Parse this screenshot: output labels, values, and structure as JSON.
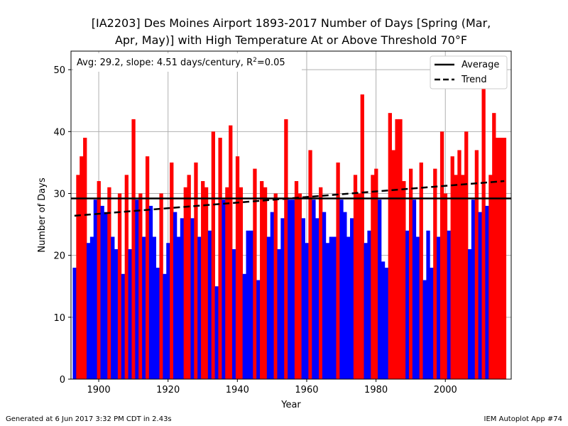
{
  "chart_data": {
    "type": "bar",
    "title_line1": "[IA2203] Des Moines Airport 1893-2017 Number of Days [Spring (Mar,",
    "title_line2": "Apr, May)] with High Temperature At or Above Threshold 70°F",
    "xlabel": "Year",
    "ylabel": "Number of Days",
    "annotation": {
      "prefix": "Avg: 29.2, slope: 4.51 days/century, R",
      "superscript": "2",
      "suffix": "=0.05"
    },
    "legend": [
      {
        "name": "Average",
        "style": "solid"
      },
      {
        "name": "Trend",
        "style": "dashed"
      }
    ],
    "legend_position": "top-right",
    "average": 29.2,
    "trend": {
      "x": [
        1893,
        2017
      ],
      "y": [
        26.4,
        32.0
      ]
    },
    "xlim": [
      1892,
      2019
    ],
    "ylim": [
      0,
      53
    ],
    "xticks": [
      1900,
      1920,
      1940,
      1960,
      1980,
      2000
    ],
    "yticks": [
      0,
      10,
      20,
      30,
      40,
      50
    ],
    "grid": true,
    "colors": {
      "above_average": "#ff0000",
      "below_average": "#0000ff",
      "lines": "#000000",
      "grid": "#b0b0b0"
    },
    "start_year": 1893,
    "values": [
      18,
      33,
      36,
      39,
      22,
      23,
      29,
      32,
      28,
      27,
      31,
      23,
      21,
      30,
      17,
      33,
      21,
      42,
      29,
      30,
      23,
      36,
      28,
      23,
      18,
      30,
      17,
      22,
      35,
      27,
      23,
      26,
      31,
      33,
      26,
      35,
      23,
      32,
      31,
      24,
      40,
      15,
      39,
      29,
      31,
      41,
      21,
      36,
      31,
      17,
      24,
      24,
      34,
      16,
      32,
      31,
      23,
      27,
      30,
      21,
      26,
      42,
      29,
      29,
      32,
      30,
      26,
      22,
      37,
      29,
      26,
      31,
      27,
      22,
      23,
      23,
      35,
      29,
      27,
      23,
      26,
      33,
      30,
      46,
      22,
      24,
      33,
      34,
      29,
      19,
      18,
      43,
      37,
      42,
      42,
      32,
      24,
      34,
      29,
      23,
      35,
      16,
      24,
      18,
      34,
      23,
      40,
      30,
      24,
      36,
      33,
      37,
      33,
      40,
      21,
      29,
      37,
      27,
      50,
      28,
      33,
      43,
      39,
      39,
      39
    ]
  },
  "footer": {
    "left": "Generated at 6 Jun 2017 3:32 PM CDT in 2.43s",
    "right": "IEM Autoplot App #74"
  }
}
